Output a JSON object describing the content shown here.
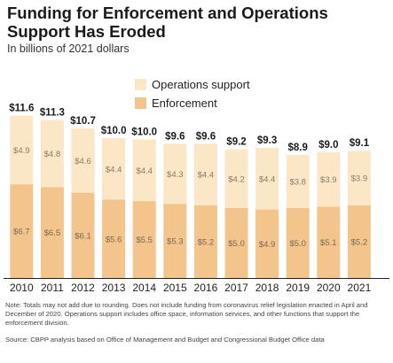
{
  "chart_data": {
    "type": "bar",
    "stacked": true,
    "title": "Funding for Enforcement and Operations Support Has Eroded",
    "subtitle": "In billions of 2021 dollars",
    "categories": [
      "2010",
      "2011",
      "2012",
      "2013",
      "2014",
      "2015",
      "2016",
      "2017",
      "2018",
      "2019",
      "2020",
      "2021"
    ],
    "series": [
      {
        "name": "Enforcement",
        "color": "#f3c48b",
        "values": [
          6.7,
          6.5,
          6.1,
          5.6,
          5.5,
          5.3,
          5.2,
          5.0,
          4.9,
          5.0,
          5.1,
          5.2
        ],
        "labels": [
          "$6.7",
          "$6.5",
          "$6.1",
          "$5.6",
          "$5.5",
          "$5.3",
          "$5.2",
          "$5.0",
          "$4.9",
          "$5.0",
          "$5.1",
          "$5.2"
        ]
      },
      {
        "name": "Operations support",
        "color": "#fbe6c6",
        "values": [
          4.9,
          4.8,
          4.6,
          4.4,
          4.4,
          4.3,
          4.4,
          4.2,
          4.4,
          3.8,
          3.9,
          3.9
        ],
        "labels": [
          "$4.9",
          "$4.8",
          "$4.6",
          "$4.4",
          "$4.4",
          "$4.3",
          "$4.4",
          "$4.2",
          "$4.4",
          "$3.8",
          "$3.9",
          "$3.9"
        ]
      }
    ],
    "totals": [
      11.6,
      11.3,
      10.7,
      10.0,
      10.0,
      9.6,
      9.6,
      9.2,
      9.3,
      8.9,
      9.0,
      9.1
    ],
    "total_labels": [
      "$11.6",
      "$11.3",
      "$10.7",
      "$10.0",
      "$10.0",
      "$9.6",
      "$9.6",
      "$9.2",
      "$9.3",
      "$8.9",
      "$9.0",
      "$9.1"
    ],
    "xlabel": "",
    "ylabel": "",
    "ylim": [
      0,
      12
    ],
    "grid": false,
    "legend_position": "top-center"
  },
  "notes": "Note: Totals may not add due to rounding. Does not include funding from coronavirus relief legislation enacted in April and December of 2020. Operations support includes office space, information services, and other functions that support the enforcement division.",
  "source": "Source: CBPP analysis based on Office of Management and Budget and Congressional Budget Office data"
}
